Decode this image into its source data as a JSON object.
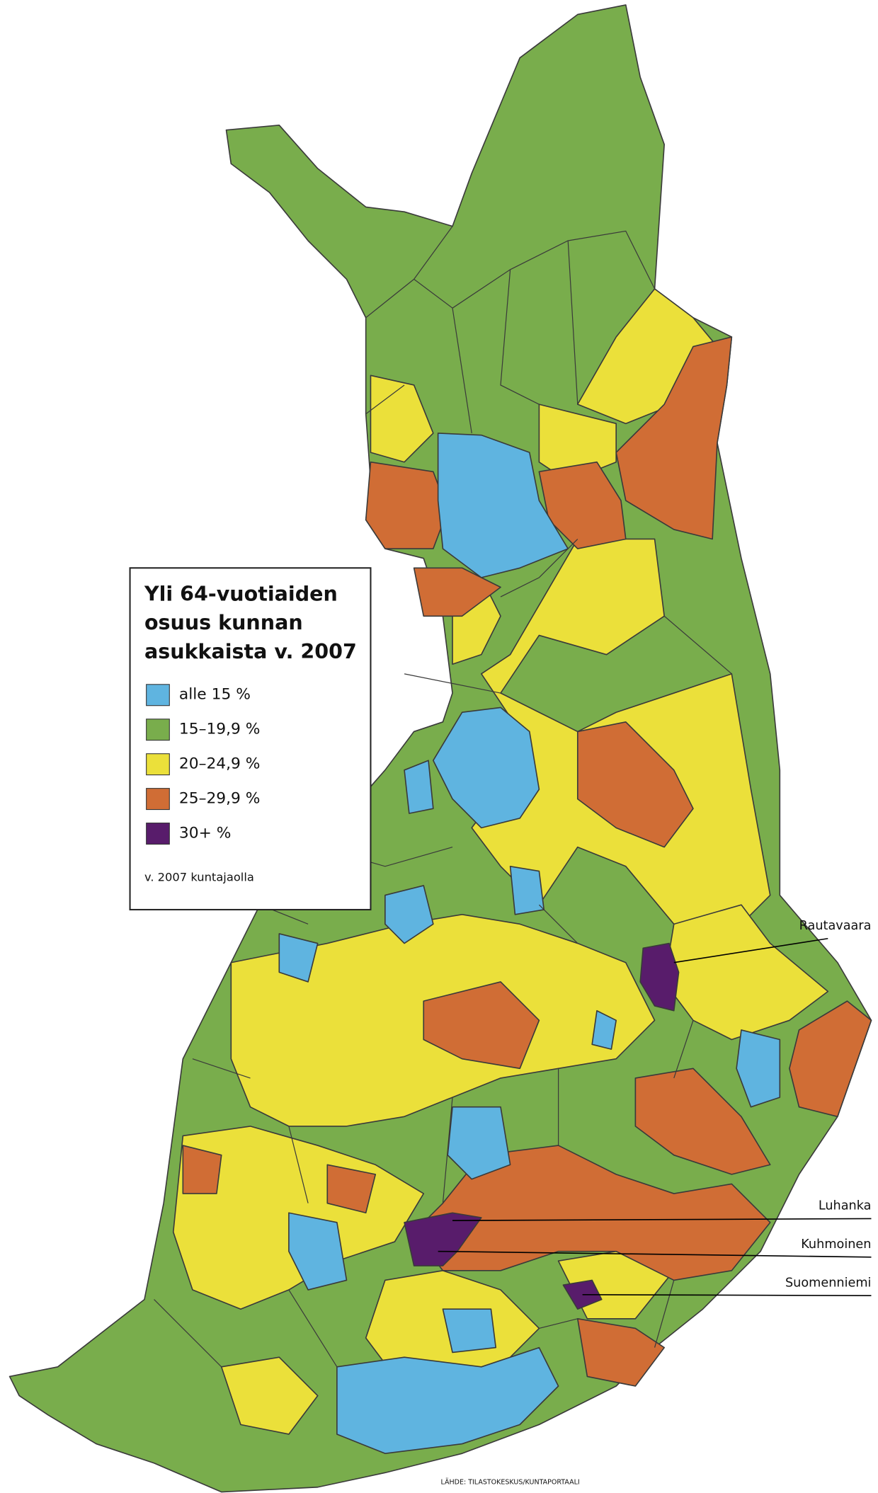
{
  "map": {
    "title": [
      "Yli 64-vuotiaiden",
      "osuus kunnan",
      "asukkaista v. 2007"
    ],
    "legend": [
      {
        "label": "alle 15 %",
        "color": "#5fb4e0"
      },
      {
        "label": "15–19,9 %",
        "color": "#79ad4c"
      },
      {
        "label": "20–24,9 %",
        "color": "#ebe03a"
      },
      {
        "label": "25–29,9 %",
        "color": "#d06d35"
      },
      {
        "label": "30+ %",
        "color": "#581c6b"
      }
    ],
    "note": "v. 2007 kuntajaolla",
    "callouts": [
      "Rautavaara",
      "Luhanka",
      "Kuhmoinen",
      "Suomenniemi"
    ],
    "source": "LÄHDE: TILASTOKESKUS/KUNTAPORTAALI"
  }
}
